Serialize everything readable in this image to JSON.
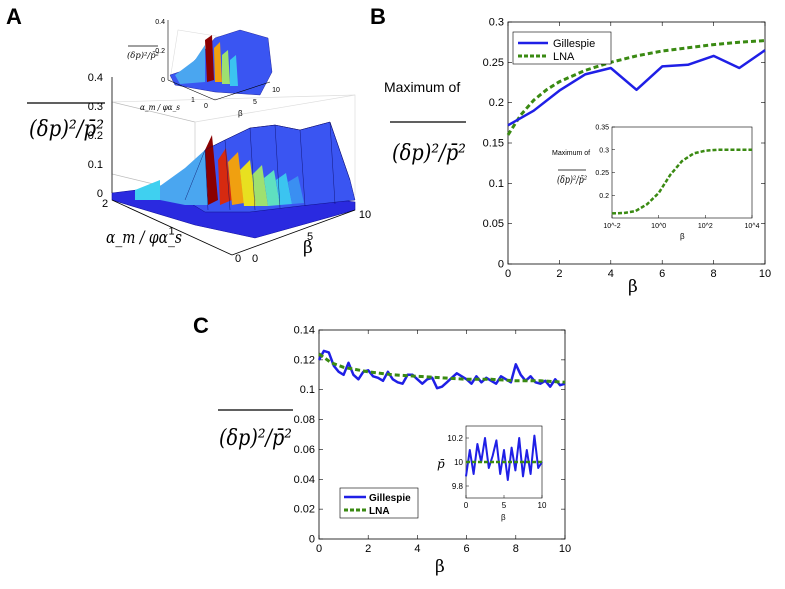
{
  "panels": {
    "a": "A",
    "b": "B",
    "c": "C"
  },
  "colors": {
    "gillespie": "#1f1fe6",
    "lna": "#3a8a12"
  },
  "chart_data": [
    {
      "id": "A",
      "type": "surface3d",
      "title": "",
      "zlabel": "(δp)²/p̄²",
      "ylabel": "α_m / φα_s",
      "xlabel": "β",
      "zticks": [
        "0",
        "0.1",
        "0.2",
        "0.3",
        "0.4"
      ],
      "xticks": [
        "0",
        "5",
        "10"
      ],
      "yticks": [
        "0",
        "1",
        "2"
      ],
      "inset": {
        "type": "surface3d",
        "zlabel": "(δp)²/p̄²",
        "ylabel": "α_m / φα_s",
        "xlabel": "β",
        "zticks": [
          "0",
          "0.2",
          "0.4"
        ],
        "xticks": [
          "5",
          "10"
        ],
        "yticks": [
          "0",
          "1"
        ]
      }
    },
    {
      "id": "B",
      "type": "line",
      "ylabel_prefix": "Maximum of",
      "ylabel": "(δp)²/p̄²",
      "xlabel": "β",
      "xlim": [
        0,
        10
      ],
      "ylim": [
        0,
        0.3
      ],
      "xticks": [
        "0",
        "2",
        "4",
        "6",
        "8",
        "10"
      ],
      "yticks": [
        "0",
        "0.05",
        "0.1",
        "0.15",
        "0.2",
        "0.25",
        "0.3"
      ],
      "legend": [
        "Gillespie",
        "LNA"
      ],
      "series": [
        {
          "name": "Gillespie",
          "x": [
            0,
            1,
            2,
            3,
            4,
            5,
            6,
            7,
            8,
            9,
            10
          ],
          "values": [
            0.172,
            0.19,
            0.215,
            0.235,
            0.243,
            0.216,
            0.245,
            0.247,
            0.258,
            0.243,
            0.265
          ]
        },
        {
          "name": "LNA",
          "x": [
            0,
            0.5,
            1,
            1.5,
            2,
            3,
            4,
            5,
            6,
            7,
            8,
            9,
            10
          ],
          "values": [
            0.16,
            0.185,
            0.203,
            0.216,
            0.226,
            0.24,
            0.25,
            0.258,
            0.264,
            0.268,
            0.272,
            0.275,
            0.277
          ]
        }
      ],
      "inset": {
        "ylabel_prefix": "Maximum of",
        "ylabel": "(δp)²/p̄²",
        "xlabel": "β",
        "scale": "log",
        "xlim_exp": [
          -2,
          4
        ],
        "ylim": [
          0.15,
          0.35
        ],
        "xticks": [
          "10^-2",
          "10^0",
          "10^2",
          "10^4"
        ],
        "yticks": [
          "0.2",
          "0.25",
          "0.3",
          "0.35"
        ],
        "series": [
          {
            "name": "LNA",
            "logx": [
              -2,
              -1.5,
              -1,
              -0.5,
              0,
              0.5,
              1,
              1.5,
              2,
              2.5,
              3,
              3.5,
              4
            ],
            "values": [
              0.16,
              0.161,
              0.165,
              0.18,
              0.205,
              0.245,
              0.275,
              0.292,
              0.298,
              0.3,
              0.3,
              0.3,
              0.3
            ]
          }
        ]
      }
    },
    {
      "id": "C",
      "type": "line",
      "ylabel": "(δp)²/p̄²",
      "xlabel": "β",
      "xlim": [
        0,
        10
      ],
      "ylim": [
        0,
        0.14
      ],
      "xticks": [
        "0",
        "2",
        "4",
        "6",
        "8",
        "10"
      ],
      "yticks": [
        "0",
        "0.02",
        "0.04",
        "0.06",
        "0.08",
        "0.1",
        "0.12",
        "0.14"
      ],
      "legend": [
        "Gillespie",
        "LNA"
      ],
      "series": [
        {
          "name": "Gillespie",
          "x": [
            0,
            0.2,
            0.4,
            0.6,
            0.8,
            1,
            1.2,
            1.4,
            1.6,
            1.8,
            2,
            2.2,
            2.4,
            2.6,
            2.8,
            3,
            3.2,
            3.4,
            3.6,
            3.8,
            4,
            4.2,
            4.4,
            4.6,
            4.8,
            5,
            5.2,
            5.4,
            5.6,
            5.8,
            6,
            6.2,
            6.4,
            6.6,
            6.8,
            7,
            7.2,
            7.4,
            7.6,
            7.8,
            8,
            8.2,
            8.4,
            8.6,
            8.8,
            9,
            9.2,
            9.4,
            9.6,
            9.8,
            10
          ],
          "values": [
            0.12,
            0.126,
            0.125,
            0.116,
            0.112,
            0.11,
            0.118,
            0.11,
            0.107,
            0.112,
            0.113,
            0.109,
            0.108,
            0.106,
            0.112,
            0.107,
            0.105,
            0.104,
            0.11,
            0.11,
            0.107,
            0.104,
            0.107,
            0.108,
            0.101,
            0.102,
            0.105,
            0.108,
            0.111,
            0.109,
            0.107,
            0.104,
            0.109,
            0.105,
            0.108,
            0.106,
            0.104,
            0.109,
            0.107,
            0.105,
            0.117,
            0.11,
            0.106,
            0.109,
            0.105,
            0.104,
            0.106,
            0.102,
            0.107,
            0.103,
            0.104
          ]
        },
        {
          "name": "LNA",
          "x": [
            0,
            0.5,
            1,
            2,
            3,
            4,
            5,
            6,
            7,
            8,
            9,
            10
          ],
          "values": [
            0.124,
            0.118,
            0.115,
            0.112,
            0.11,
            0.109,
            0.108,
            0.107,
            0.107,
            0.106,
            0.106,
            0.105
          ]
        }
      ],
      "inset": {
        "ylabel": "p̄",
        "xlabel": "β",
        "xlim": [
          0,
          10
        ],
        "ylim": [
          9.7,
          10.3
        ],
        "xticks": [
          "0",
          "5",
          "10"
        ],
        "yticks": [
          "9.8",
          "10",
          "10.2"
        ],
        "series": [
          {
            "name": "Gillespie",
            "x": [
              0,
              0.5,
              1,
              1.5,
              2,
              2.5,
              3,
              3.5,
              4,
              4.5,
              5,
              5.5,
              6,
              6.5,
              7,
              7.5,
              8,
              8.5,
              9,
              9.5,
              10
            ],
            "values": [
              9.88,
              10.1,
              9.9,
              10.15,
              10.0,
              10.2,
              9.95,
              10.05,
              10.18,
              9.9,
              10.1,
              9.85,
              10.12,
              9.93,
              10.2,
              9.88,
              10.1,
              9.9,
              10.22,
              9.95,
              10.0
            ]
          },
          {
            "name": "LNA",
            "x": [
              0,
              2,
              4,
              6,
              8,
              10
            ],
            "values": [
              10,
              10,
              10,
              10,
              10,
              10
            ]
          }
        ]
      }
    }
  ]
}
